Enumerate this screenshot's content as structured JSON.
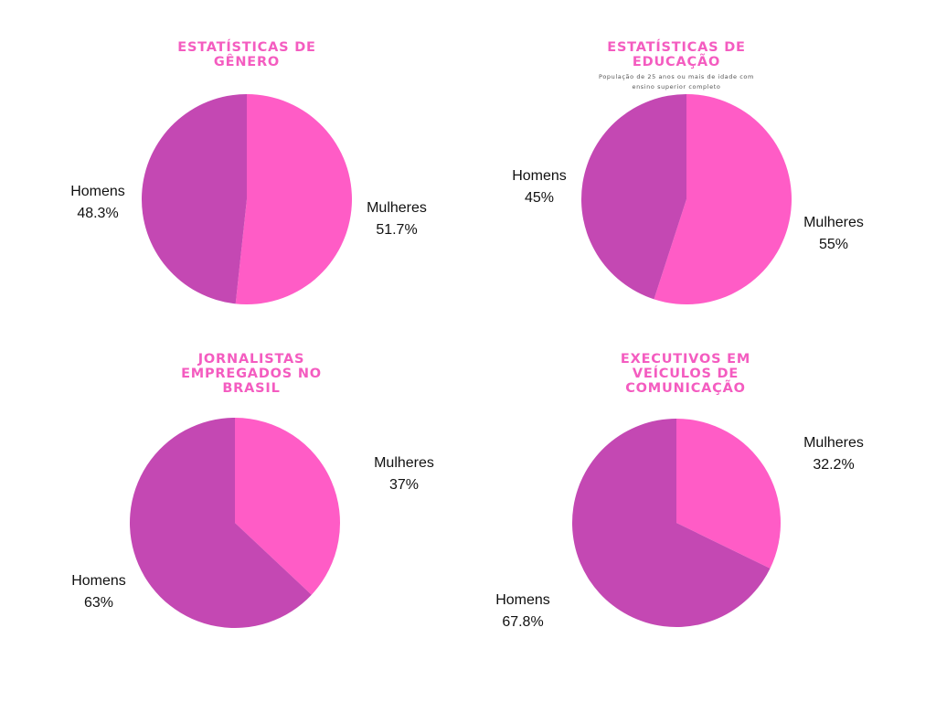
{
  "colors": {
    "mulheres": "#ff5cc6",
    "homens": "#c448b3",
    "title": "#f45cc0"
  },
  "chart_data": [
    {
      "type": "pie",
      "title": "ESTATÍSTICAS DE GÊNERO",
      "subtitle": "",
      "slices": [
        {
          "label": "Mulheres",
          "value": 51.7,
          "text": "51.7%"
        },
        {
          "label": "Homens",
          "value": 48.3,
          "text": "48.3%"
        }
      ]
    },
    {
      "type": "pie",
      "title": "ESTATÍSTICAS DE EDUCAÇÃO",
      "subtitle": "População de 25 anos ou mais de idade com ensino superior completo",
      "slices": [
        {
          "label": "Mulheres",
          "value": 55,
          "text": "55%"
        },
        {
          "label": "Homens",
          "value": 45,
          "text": "45%"
        }
      ]
    },
    {
      "type": "pie",
      "title": "JORNALISTAS EMPREGADOS NO BRASIL",
      "subtitle": "",
      "slices": [
        {
          "label": "Mulheres",
          "value": 37,
          "text": "37%"
        },
        {
          "label": "Homens",
          "value": 63,
          "text": "63%"
        }
      ]
    },
    {
      "type": "pie",
      "title": "EXECUTIVOS EM VEÍCULOS DE COMUNICAÇÃO",
      "subtitle": "",
      "slices": [
        {
          "label": "Mulheres",
          "value": 32.2,
          "text": "32.2%"
        },
        {
          "label": "Homens",
          "value": 67.8,
          "text": "67.8%"
        }
      ]
    }
  ]
}
